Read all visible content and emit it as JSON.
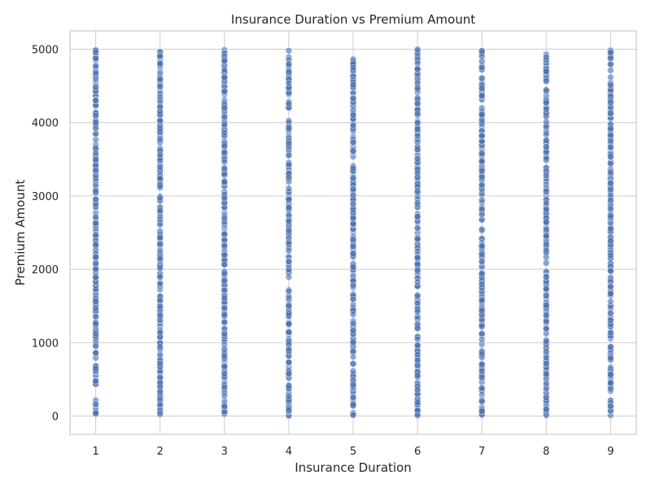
{
  "chart_data": {
    "type": "scatter",
    "title": "Insurance Duration vs Premium Amount",
    "xlabel": "Insurance Duration",
    "ylabel": "Premium Amount",
    "xlim": [
      0.6,
      9.4
    ],
    "ylim": [
      -250,
      5250
    ],
    "x_ticks": [
      1,
      2,
      3,
      4,
      5,
      6,
      7,
      8,
      9
    ],
    "y_ticks": [
      0,
      1000,
      2000,
      3000,
      4000,
      5000
    ],
    "grid": true,
    "marker_color": "#4c72b0",
    "marker_edge_color": "#ffffff",
    "marker_alpha": 0.6,
    "series": [
      {
        "x_values": [
          1,
          2,
          3,
          4,
          5,
          6,
          7,
          8,
          9
        ],
        "y_range_per_x": [
          0,
          5000
        ],
        "note_density": "Dense uniform distribution of points across the full range 0–5000 at every integer duration"
      }
    ]
  }
}
